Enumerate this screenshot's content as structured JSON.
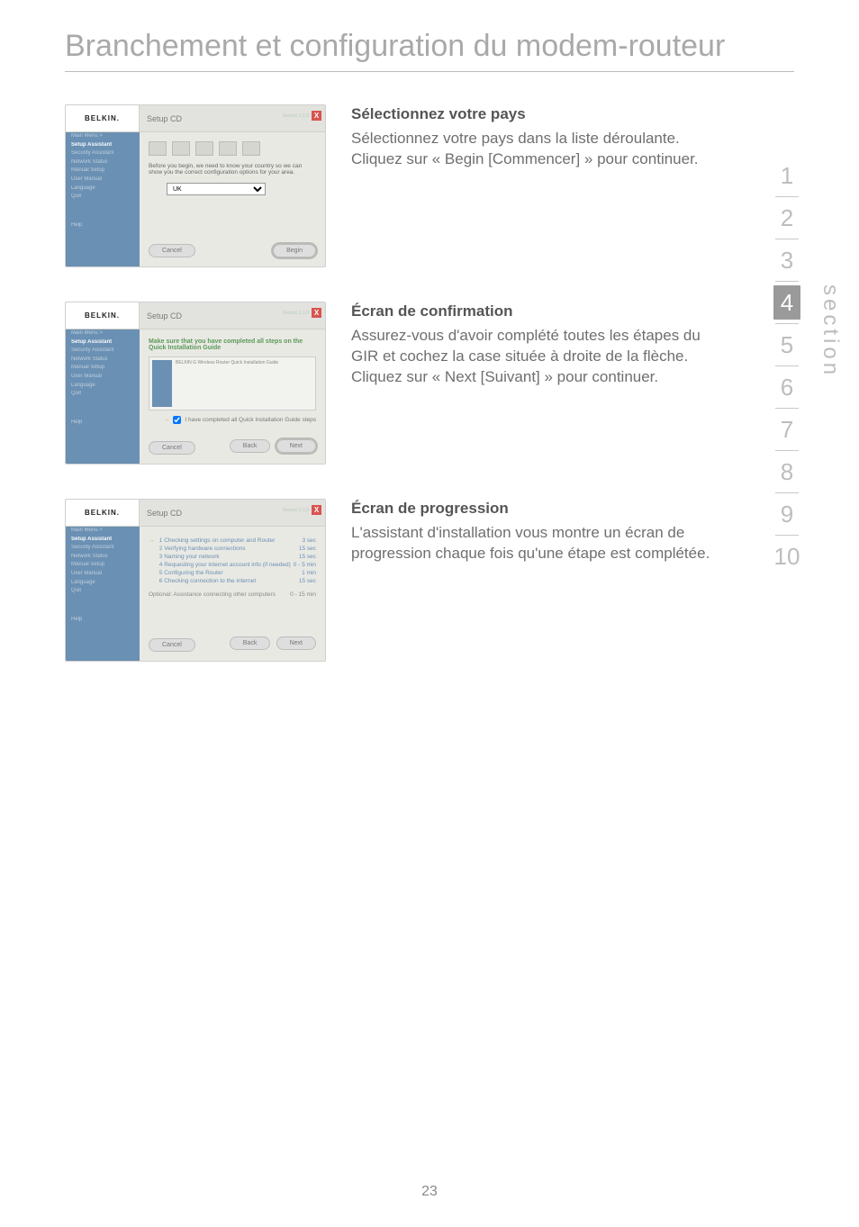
{
  "page": {
    "title": "Branchement et configuration du modem-routeur",
    "number": "23",
    "section_label": "section"
  },
  "rail": {
    "numbers": [
      "1",
      "2",
      "3",
      "4",
      "5",
      "6",
      "7",
      "8",
      "9",
      "10"
    ],
    "current_index": 3
  },
  "win": {
    "brand": "BELKIN.",
    "header_title": "Setup CD",
    "version": "Version 1.1.0",
    "close": "X",
    "cancel": "Cancel",
    "begin": "Begin",
    "back": "Back",
    "next": "Next"
  },
  "shot1": {
    "sidebar": [
      "Main Menu >",
      "Setup Assistant",
      "Security Assistant",
      "Network Status",
      "Manual Setup",
      "User Manual",
      "Language",
      "Quit",
      "Help"
    ],
    "active_idx": 1,
    "msg": "Before you begin, we need to know your country so we can show you the correct configuration options for your area.",
    "select_value": "UK"
  },
  "shot2": {
    "green": "Make sure that you have completed all steps on the Quick Installation Guide",
    "panel_caption": "BELKIN   G Wireless Router   Quick Installation Guide",
    "checkbox_label": "I have completed all Quick Installation Guide steps"
  },
  "shot3": {
    "steps": [
      {
        "t": "1  Checking settings on computer and Router",
        "d": "3 sec"
      },
      {
        "t": "2  Verifying hardware connections",
        "d": "15 sec"
      },
      {
        "t": "3  Naming your network",
        "d": "15 sec"
      },
      {
        "t": "4  Requesting your internet account info (if needed)",
        "d": "0 - 5 min"
      },
      {
        "t": "5  Configuring the Router",
        "d": "1 min"
      },
      {
        "t": "6  Checking connection to the internet",
        "d": "15 sec"
      }
    ],
    "optional": {
      "t": "Optional: Assistance connecting other computers",
      "d": "0 - 15 min"
    }
  },
  "sections": {
    "s1": {
      "h": "Sélectionnez votre pays",
      "p": "Sélectionnez votre pays dans la liste déroulante. Cliquez sur « Begin [Commencer] » pour continuer."
    },
    "s2": {
      "h": "Écran de confirmation",
      "p": "Assurez-vous d'avoir complété toutes les étapes du GIR et cochez la case située à droite de la flèche. Cliquez sur « Next [Suivant] » pour continuer."
    },
    "s3": {
      "h": "Écran de progression",
      "p": "L'assistant d'installation vous montre un écran de progression chaque fois qu'une étape est complétée."
    }
  }
}
